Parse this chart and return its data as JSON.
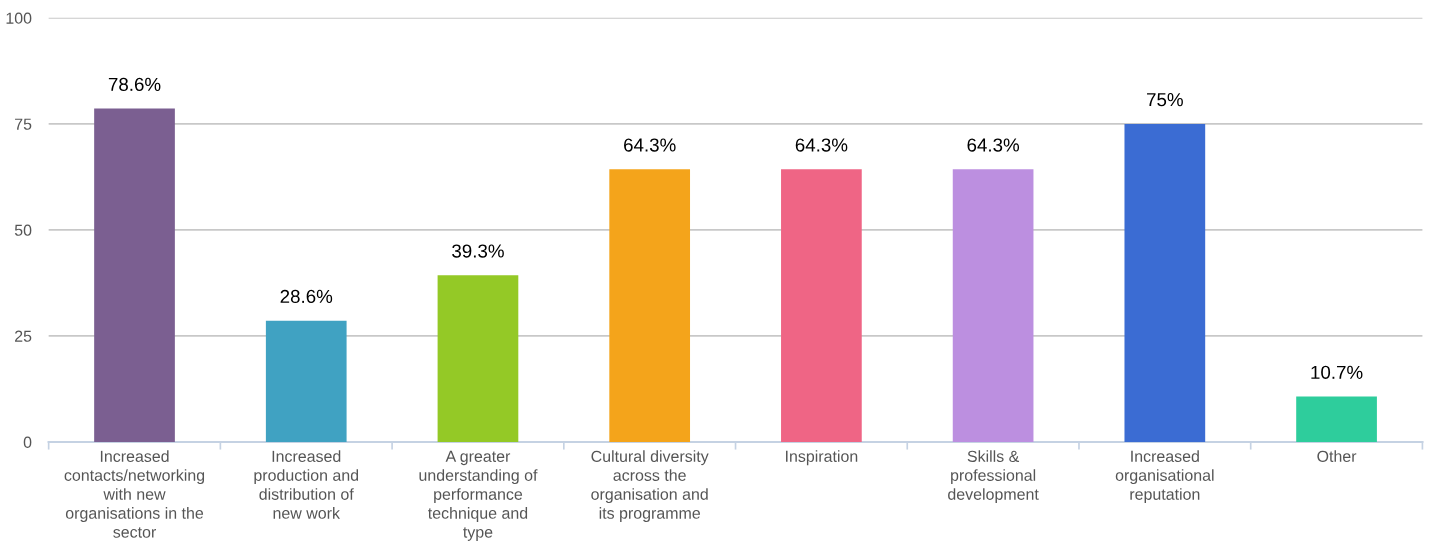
{
  "chart_data": {
    "type": "bar",
    "categories": [
      "Increased\ncontacts/networking\nwith new\norganisations in the\nsector",
      "Increased\nproduction and\ndistribution of\nnew work",
      "A greater\nunderstanding of\nperformance\ntechnique and\ntype",
      "Cultural diversity\nacross the\norganisation and\nits programme",
      "Inspiration",
      "Skills &\nprofessional\ndevelopment",
      "Increased\norganisational\nreputation",
      "Other"
    ],
    "values": [
      78.6,
      28.6,
      39.3,
      64.3,
      64.3,
      64.3,
      75,
      10.7
    ],
    "value_labels": [
      "78.6%",
      "28.6%",
      "39.3%",
      "64.3%",
      "64.3%",
      "64.3%",
      "75%",
      "10.7%"
    ],
    "colors": [
      "#7b5f91",
      "#40a2c2",
      "#94c926",
      "#f4a41b",
      "#ef6585",
      "#bc8fe0",
      "#3b6cd3",
      "#2ecd9c"
    ],
    "ylim": [
      0,
      100
    ],
    "yticks": [
      0,
      25,
      50,
      75,
      100
    ],
    "grid": "y"
  }
}
